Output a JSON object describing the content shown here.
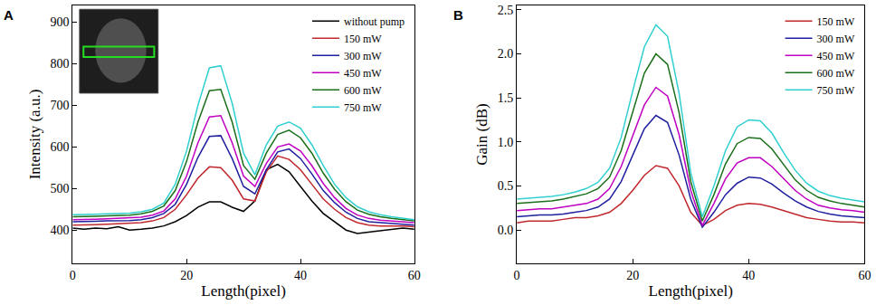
{
  "chart_data": [
    {
      "type": "line",
      "title": "A",
      "x_label": "Length(pixel)",
      "y_label": "Intensity (a.u.)",
      "xlim": [
        0,
        60
      ],
      "xticks": [
        0,
        20,
        40,
        60
      ],
      "ylim": [
        320,
        940
      ],
      "yticks": [
        400,
        500,
        600,
        700,
        800,
        900
      ],
      "legend": "upper right",
      "x": [
        0,
        2,
        4,
        6,
        8,
        10,
        12,
        14,
        16,
        18,
        20,
        22,
        24,
        26,
        28,
        30,
        32,
        34,
        36,
        38,
        40,
        42,
        44,
        46,
        48,
        50,
        52,
        54,
        56,
        58,
        60
      ],
      "series": [
        {
          "name": "without pump",
          "color": "#000000",
          "values": [
            405,
            402,
            405,
            403,
            408,
            400,
            402,
            405,
            410,
            420,
            435,
            455,
            468,
            468,
            455,
            445,
            470,
            545,
            558,
            540,
            505,
            470,
            440,
            420,
            400,
            392,
            395,
            398,
            402,
            405,
            402
          ]
        },
        {
          "name": "150 mW",
          "color": "#c0282d",
          "values": [
            412,
            412,
            413,
            414,
            415,
            416,
            418,
            422,
            430,
            450,
            485,
            525,
            552,
            550,
            520,
            475,
            470,
            540,
            578,
            570,
            545,
            510,
            475,
            450,
            430,
            418,
            412,
            410,
            410,
            410,
            408
          ]
        },
        {
          "name": "300 mW",
          "color": "#1f1fa0",
          "values": [
            420,
            420,
            421,
            422,
            422,
            423,
            425,
            430,
            440,
            462,
            510,
            575,
            625,
            627,
            572,
            505,
            487,
            545,
            588,
            595,
            572,
            535,
            495,
            466,
            443,
            428,
            420,
            418,
            416,
            415,
            412
          ]
        },
        {
          "name": "450 mW",
          "color": "#c000c0",
          "values": [
            425,
            425,
            426,
            427,
            428,
            429,
            431,
            436,
            446,
            475,
            530,
            610,
            672,
            675,
            610,
            530,
            505,
            560,
            600,
            607,
            590,
            555,
            512,
            478,
            452,
            436,
            428,
            424,
            422,
            420,
            418
          ]
        },
        {
          "name": "600 mW",
          "color": "#1a6e1a",
          "values": [
            432,
            432,
            433,
            434,
            435,
            436,
            439,
            445,
            458,
            495,
            565,
            660,
            735,
            738,
            660,
            555,
            522,
            585,
            630,
            640,
            622,
            585,
            537,
            498,
            468,
            448,
            438,
            432,
            428,
            425,
            422
          ]
        },
        {
          "name": "750 mW",
          "color": "#30d0d0",
          "values": [
            437,
            437,
            438,
            439,
            440,
            441,
            444,
            450,
            465,
            510,
            590,
            700,
            790,
            795,
            705,
            585,
            533,
            605,
            650,
            660,
            645,
            605,
            555,
            510,
            478,
            456,
            444,
            437,
            432,
            428,
            425
          ]
        }
      ]
    },
    {
      "type": "line",
      "title": "B",
      "x_label": "Length(pixel)",
      "y_label": "Gain (dB)",
      "xlim": [
        0,
        60
      ],
      "xticks": [
        0,
        20,
        40,
        60
      ],
      "ylim": [
        -0.38,
        2.55
      ],
      "yticks": [
        {
          "value": 0,
          "label": "0.0"
        },
        0.5,
        {
          "value": 1,
          "label": "1.0"
        },
        1.5,
        {
          "value": 2,
          "label": "2.0"
        },
        2.5
      ],
      "legend": "upper right",
      "x": [
        0,
        2,
        4,
        6,
        8,
        10,
        12,
        14,
        16,
        18,
        20,
        22,
        24,
        26,
        28,
        30,
        32,
        34,
        36,
        38,
        40,
        42,
        44,
        46,
        48,
        50,
        52,
        54,
        56,
        58,
        60
      ],
      "series": [
        {
          "name": "150 mW",
          "color": "#c0282d",
          "values": [
            0.08,
            0.1,
            0.1,
            0.1,
            0.12,
            0.14,
            0.14,
            0.16,
            0.2,
            0.3,
            0.45,
            0.62,
            0.73,
            0.7,
            0.5,
            0.2,
            0.05,
            0.12,
            0.22,
            0.28,
            0.3,
            0.29,
            0.26,
            0.22,
            0.18,
            0.14,
            0.12,
            0.1,
            0.09,
            0.09,
            0.08
          ]
        },
        {
          "name": "300 mW",
          "color": "#1f1fa0",
          "values": [
            0.15,
            0.16,
            0.17,
            0.17,
            0.18,
            0.2,
            0.22,
            0.26,
            0.35,
            0.55,
            0.85,
            1.15,
            1.3,
            1.22,
            0.85,
            0.35,
            0.03,
            0.2,
            0.4,
            0.53,
            0.6,
            0.59,
            0.52,
            0.42,
            0.33,
            0.26,
            0.21,
            0.18,
            0.16,
            0.15,
            0.14
          ]
        },
        {
          "name": "450 mW",
          "color": "#c000c0",
          "values": [
            0.22,
            0.23,
            0.24,
            0.24,
            0.26,
            0.28,
            0.3,
            0.35,
            0.47,
            0.72,
            1.08,
            1.42,
            1.62,
            1.52,
            1.08,
            0.45,
            0.05,
            0.3,
            0.58,
            0.76,
            0.82,
            0.82,
            0.72,
            0.58,
            0.45,
            0.35,
            0.28,
            0.25,
            0.23,
            0.22,
            0.2
          ]
        },
        {
          "name": "600 mW",
          "color": "#1a6e1a",
          "values": [
            0.3,
            0.31,
            0.32,
            0.33,
            0.35,
            0.38,
            0.41,
            0.47,
            0.6,
            0.9,
            1.35,
            1.78,
            2.0,
            1.88,
            1.33,
            0.55,
            0.1,
            0.4,
            0.75,
            0.98,
            1.05,
            1.04,
            0.92,
            0.74,
            0.57,
            0.45,
            0.37,
            0.33,
            0.3,
            0.28,
            0.26
          ]
        },
        {
          "name": "750 mW",
          "color": "#30d0d0",
          "values": [
            0.35,
            0.36,
            0.37,
            0.38,
            0.4,
            0.43,
            0.47,
            0.54,
            0.7,
            1.05,
            1.58,
            2.08,
            2.33,
            2.2,
            1.55,
            0.65,
            0.15,
            0.5,
            0.9,
            1.17,
            1.25,
            1.24,
            1.1,
            0.88,
            0.68,
            0.53,
            0.44,
            0.39,
            0.36,
            0.34,
            0.32
          ]
        }
      ]
    }
  ]
}
